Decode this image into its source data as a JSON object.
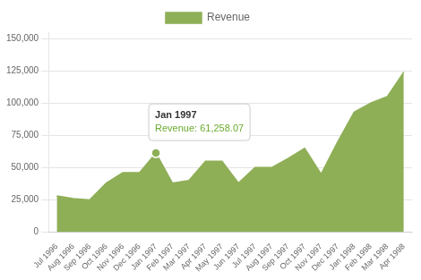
{
  "chart_data": {
    "type": "area",
    "categories": [
      "Jul 1996",
      "Aug 1996",
      "Sep 1996",
      "Oct 1996",
      "Nov 1996",
      "Dec 1996",
      "Jan 1997",
      "Feb 1997",
      "Mar 1997",
      "Apr 1997",
      "May 1997",
      "Jun 1997",
      "Jul 1997",
      "Aug 1997",
      "Sep 1997",
      "Oct 1997",
      "Nov 1997",
      "Dec 1997",
      "Jan 1998",
      "Feb 1998",
      "Mar 1998",
      "Apr 1998"
    ],
    "series": [
      {
        "name": "Revenue",
        "color": "#8faf57",
        "values": [
          28000,
          26000,
          25000,
          38000,
          46000,
          46000,
          61258,
          38000,
          40000,
          55000,
          55000,
          38000,
          50000,
          50000,
          57000,
          65000,
          45000,
          70000,
          93000,
          100000,
          105000,
          124000
        ]
      }
    ],
    "ylim": [
      0,
      155000
    ],
    "yticks": [
      0,
      {
        "value": 25000,
        "label": "25,000"
      },
      {
        "value": 50000,
        "label": "50,000"
      },
      {
        "value": 75000,
        "label": "75,000"
      },
      {
        "value": 100000,
        "label": "100,000"
      },
      {
        "value": 125000,
        "label": "125,000"
      },
      {
        "value": 150000,
        "label": "150,000"
      }
    ],
    "grid": true,
    "legend": "top",
    "annotations": [
      {
        "category": "Jan 1997",
        "text": [
          "Jan 1997",
          "Revenue: 61,258.07"
        ]
      }
    ]
  }
}
